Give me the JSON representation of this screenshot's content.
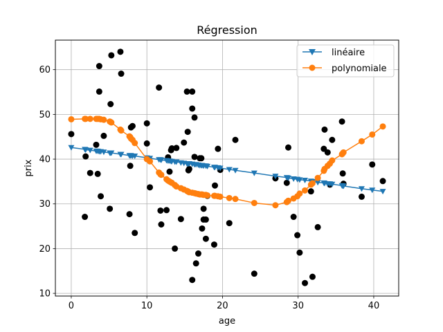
{
  "chart_data": {
    "type": "scatter",
    "title": "Régression",
    "xlabel": "age",
    "ylabel": "prix",
    "xlim": [
      -2.1,
      43.3
    ],
    "ylim": [
      9.4,
      66.6
    ],
    "xticks": [
      0,
      10,
      20,
      30,
      40
    ],
    "yticks": [
      10,
      20,
      30,
      40,
      50,
      60
    ],
    "grid": true,
    "legend_position": "top-right",
    "points": [
      [
        0.0,
        45.6
      ],
      [
        1.8,
        27.1
      ],
      [
        1.9,
        40.6
      ],
      [
        2.5,
        36.9
      ],
      [
        3.3,
        43.2
      ],
      [
        3.5,
        36.7
      ],
      [
        3.7,
        60.8
      ],
      [
        3.7,
        55.1
      ],
      [
        3.9,
        31.7
      ],
      [
        4.3,
        45.2
      ],
      [
        5.1,
        28.9
      ],
      [
        5.2,
        52.3
      ],
      [
        5.3,
        63.2
      ],
      [
        6.5,
        64.0
      ],
      [
        6.6,
        59.1
      ],
      [
        7.7,
        27.7
      ],
      [
        7.8,
        38.5
      ],
      [
        7.9,
        47.1
      ],
      [
        8.1,
        47.4
      ],
      [
        8.4,
        23.5
      ],
      [
        10.0,
        48.0
      ],
      [
        10.0,
        43.5
      ],
      [
        10.4,
        33.7
      ],
      [
        11.6,
        56.0
      ],
      [
        11.8,
        28.5
      ],
      [
        11.9,
        25.4
      ],
      [
        12.6,
        28.6
      ],
      [
        12.8,
        40.4
      ],
      [
        13.0,
        37.2
      ],
      [
        13.2,
        42.0
      ],
      [
        13.3,
        42.4
      ],
      [
        13.7,
        20.0
      ],
      [
        13.9,
        42.5
      ],
      [
        14.5,
        26.6
      ],
      [
        14.9,
        43.7
      ],
      [
        15.3,
        55.1
      ],
      [
        15.4,
        46.1
      ],
      [
        15.5,
        37.5
      ],
      [
        15.6,
        37.8
      ],
      [
        16.0,
        55.1
      ],
      [
        16.0,
        51.3
      ],
      [
        16.0,
        13.0
      ],
      [
        16.3,
        49.3
      ],
      [
        16.3,
        40.5
      ],
      [
        16.5,
        16.7
      ],
      [
        16.8,
        18.9
      ],
      [
        17.0,
        40.2
      ],
      [
        17.2,
        40.2
      ],
      [
        17.3,
        24.5
      ],
      [
        17.5,
        28.9
      ],
      [
        17.5,
        26.5
      ],
      [
        17.8,
        22.2
      ],
      [
        17.8,
        26.5
      ],
      [
        18.0,
        31.8
      ],
      [
        18.9,
        20.9
      ],
      [
        19.0,
        34.1
      ],
      [
        19.4,
        42.3
      ],
      [
        19.7,
        37.6
      ],
      [
        20.9,
        25.7
      ],
      [
        21.7,
        44.3
      ],
      [
        24.2,
        14.4
      ],
      [
        27.0,
        35.7
      ],
      [
        28.5,
        34.7
      ],
      [
        28.7,
        42.6
      ],
      [
        29.4,
        27.1
      ],
      [
        29.9,
        23.0
      ],
      [
        30.2,
        19.1
      ],
      [
        30.9,
        12.3
      ],
      [
        31.7,
        32.8
      ],
      [
        31.9,
        13.7
      ],
      [
        32.6,
        24.8
      ],
      [
        33.4,
        42.3
      ],
      [
        33.5,
        46.6
      ],
      [
        33.9,
        41.5
      ],
      [
        34.2,
        34.3
      ],
      [
        34.5,
        44.3
      ],
      [
        35.8,
        48.4
      ],
      [
        35.9,
        36.8
      ],
      [
        36.0,
        34.5
      ],
      [
        38.4,
        31.6
      ],
      [
        39.8,
        38.8
      ],
      [
        41.2,
        35.1
      ]
    ],
    "series": [
      {
        "name": "linéaire",
        "color": "#1f77b4",
        "marker": "triangle-down",
        "x": [
          0.0,
          1.8,
          1.9,
          2.5,
          3.3,
          3.5,
          3.7,
          3.9,
          4.3,
          5.1,
          5.2,
          5.3,
          6.5,
          6.6,
          7.7,
          7.8,
          7.9,
          8.1,
          8.4,
          10.0,
          10.4,
          11.6,
          11.8,
          11.9,
          12.6,
          12.8,
          13.0,
          13.2,
          13.3,
          13.7,
          13.9,
          14.5,
          14.9,
          15.3,
          15.4,
          15.5,
          15.6,
          16.0,
          16.3,
          16.5,
          16.8,
          17.0,
          17.2,
          17.3,
          17.5,
          17.8,
          18.0,
          18.9,
          19.0,
          19.4,
          19.7,
          20.9,
          21.7,
          24.2,
          27.0,
          28.5,
          28.7,
          29.4,
          29.9,
          30.2,
          30.9,
          31.7,
          31.9,
          32.6,
          33.4,
          33.5,
          33.9,
          34.2,
          34.5,
          35.8,
          35.9,
          36.0,
          38.4,
          39.8,
          41.2
        ],
        "y": [
          42.6,
          42.2,
          42.1,
          42.0,
          41.8,
          41.8,
          41.7,
          41.7,
          41.6,
          41.4,
          41.4,
          41.4,
          41.1,
          41.1,
          40.8,
          40.8,
          40.8,
          40.7,
          40.7,
          40.3,
          40.2,
          39.9,
          39.9,
          39.8,
          39.7,
          39.6,
          39.6,
          39.5,
          39.5,
          39.4,
          39.4,
          39.2,
          39.1,
          39.0,
          39.0,
          39.0,
          39.0,
          38.9,
          38.8,
          38.8,
          38.7,
          38.6,
          38.6,
          38.6,
          38.5,
          38.5,
          38.4,
          38.2,
          38.2,
          38.1,
          38.0,
          37.7,
          37.5,
          36.9,
          36.2,
          35.9,
          35.8,
          35.6,
          35.5,
          35.4,
          35.3,
          35.1,
          35.0,
          34.8,
          34.7,
          34.6,
          34.5,
          34.5,
          34.4,
          34.1,
          34.0,
          34.0,
          33.4,
          33.1,
          32.8
        ]
      },
      {
        "name": "polynomiale",
        "color": "#ff7f0e",
        "marker": "circle",
        "x": [
          0.0,
          1.8,
          1.9,
          2.5,
          3.3,
          3.5,
          3.7,
          3.9,
          4.3,
          5.1,
          5.2,
          5.3,
          6.5,
          6.6,
          7.7,
          7.8,
          7.9,
          8.1,
          8.4,
          10.0,
          10.4,
          11.6,
          11.8,
          11.9,
          12.6,
          12.8,
          13.0,
          13.2,
          13.3,
          13.7,
          13.9,
          14.5,
          14.9,
          15.3,
          15.4,
          15.5,
          15.6,
          16.0,
          16.3,
          16.5,
          16.8,
          17.0,
          17.2,
          17.3,
          17.5,
          17.8,
          18.0,
          18.9,
          19.0,
          19.4,
          19.7,
          20.9,
          21.7,
          24.2,
          27.0,
          28.5,
          28.7,
          29.4,
          29.9,
          30.2,
          30.9,
          31.7,
          31.9,
          32.6,
          33.4,
          33.5,
          33.9,
          34.2,
          34.5,
          35.8,
          35.9,
          36.0,
          38.4,
          39.8,
          41.2
        ],
        "y": [
          48.9,
          49.0,
          49.0,
          49.0,
          49.0,
          49.0,
          49.0,
          48.9,
          48.8,
          48.4,
          48.3,
          48.2,
          46.6,
          46.4,
          45.1,
          44.9,
          44.6,
          44.3,
          43.6,
          40.0,
          39.5,
          37.0,
          36.6,
          36.5,
          35.5,
          35.2,
          35.0,
          34.8,
          34.7,
          34.2,
          33.9,
          33.5,
          33.2,
          32.9,
          32.8,
          32.7,
          32.6,
          32.5,
          32.4,
          32.3,
          32.2,
          32.1,
          32.1,
          32.1,
          32.0,
          32.0,
          31.9,
          31.8,
          31.8,
          31.7,
          31.6,
          31.3,
          31.1,
          30.2,
          29.7,
          30.4,
          30.7,
          31.2,
          31.7,
          32.3,
          33.0,
          34.3,
          34.6,
          35.8,
          37.4,
          37.8,
          38.5,
          39.0,
          39.7,
          41.1,
          41.3,
          41.5,
          44.0,
          45.5,
          47.3
        ]
      }
    ]
  }
}
